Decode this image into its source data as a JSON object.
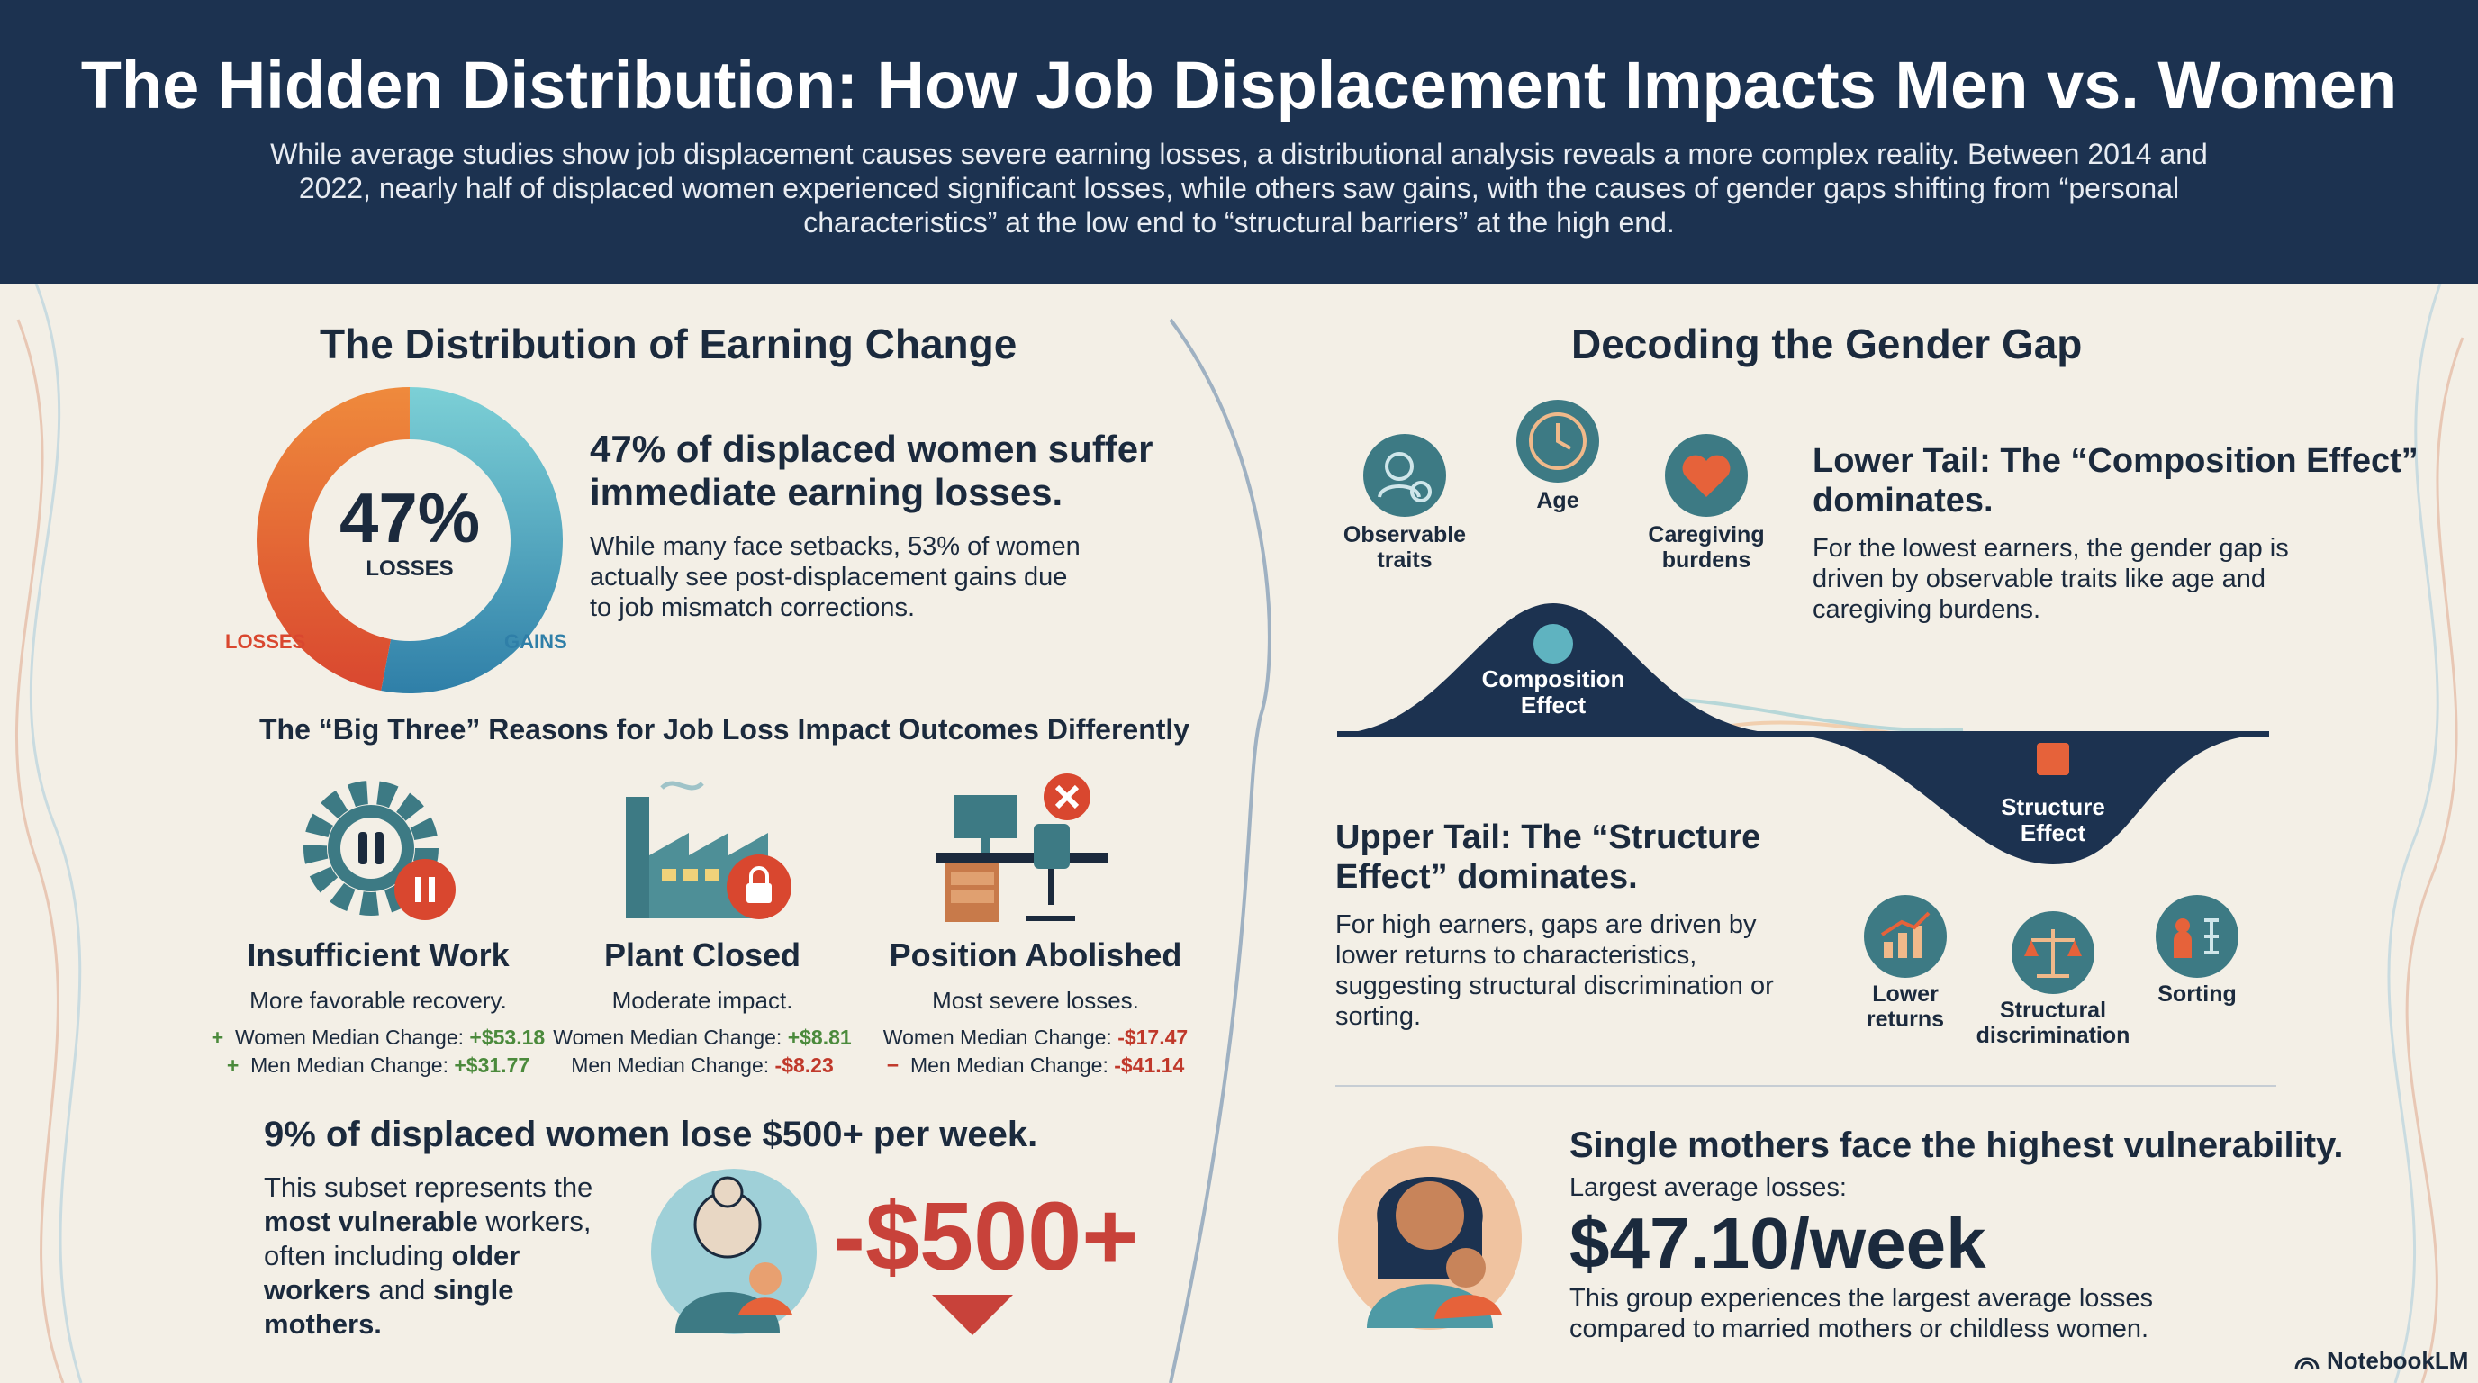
{
  "header": {
    "title": "The Hidden Distribution: How Job Displacement Impacts Men vs. Women",
    "subtitle": "While average studies show job displacement causes severe earning losses, a distributional analysis reveals a more complex reality. Between 2014 and 2022, nearly half of displaced women experienced significant losses, while others saw gains, with the causes of gender gaps shifting from “personal characteristics” at the low end to “structural barriers” at the high end."
  },
  "left": {
    "section_title": "The Distribution of Earning Change",
    "donut": {
      "losses_pct": 47,
      "center_value": "47%",
      "center_label": "LOSSES",
      "losses_label": "LOSSES",
      "gains_label": "GAINS",
      "losses_color": "#e6623a",
      "gains_color": "#3a9bb3"
    },
    "headline": "47% of displaced women suffer immediate earning losses.",
    "text": "While many face setbacks, 53% of women actually see post-displacement gains due to job mismatch corrections.",
    "big_three_title": "The “Big Three” Reasons for Job Loss Impact Outcomes Differently",
    "reasons": [
      {
        "title": "Insufficient Work",
        "desc": "More favorable recovery.",
        "women": "Women Median Change:",
        "women_val": "+$53.18",
        "men": "Men Median Change:",
        "men_val": "+$31.77",
        "sign": "+"
      },
      {
        "title": "Plant Closed",
        "desc": "Moderate impact.",
        "women": "Women Median Change:",
        "women_val": "+$8.81",
        "men": "Men Median Change:",
        "men_val": "-$8.23",
        "sign": ""
      },
      {
        "title": "Position Abolished",
        "desc": "Most severe losses.",
        "women": "Women Median Change:",
        "women_val": "-$17.47",
        "men": "Men Median Change:",
        "men_val": "-$41.14",
        "sign": "−"
      }
    ],
    "vulnerable_headline": "9% of displaced women lose $500+ per week.",
    "vulnerable_text_1": "This subset represents the ",
    "vulnerable_bold_1": "most vulnerable",
    "vulnerable_text_2": " workers, often including ",
    "vulnerable_bold_2": "older workers",
    "vulnerable_text_3": " and ",
    "vulnerable_bold_3": "single mothers.",
    "big_loss": "-$500+"
  },
  "right": {
    "section_title": "Decoding the Gender Gap",
    "lower_icons": [
      "Observable traits",
      "Age",
      "Caregiving burdens"
    ],
    "lower_title": "Lower Tail: The “Composition Effect” dominates.",
    "lower_text": "For the lowest earners, the gender gap is driven by observable traits like age and caregiving burdens.",
    "composition_label": "Composition Effect",
    "structure_label": "Structure Effect",
    "upper_title": "Upper Tail: The “Structure Effect” dominates.",
    "upper_text": "For high earners, gaps are driven by lower returns to characteristics, suggesting structural discrimination or sorting.",
    "upper_icons": [
      "Lower returns",
      "Structural discrimination",
      "Sorting"
    ],
    "single_title": "Single mothers face the highest vulnerability.",
    "single_sub": "Largest average losses:",
    "single_value": "$47.10/week",
    "single_text": "This group experiences the largest average losses compared to married mothers or childless women."
  },
  "brand": "NotebookLM"
}
